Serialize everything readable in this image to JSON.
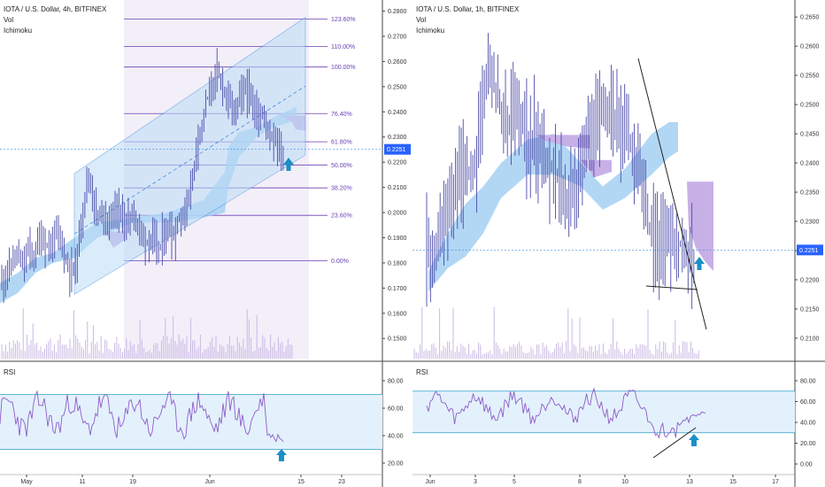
{
  "left": {
    "title": "IOTA / U.S. Dollar, 4h, BITFINEX",
    "vol_label": "Vol",
    "ichimoku_label": "Ichimoku",
    "rsi_label": "RSI",
    "price_ticks": [
      "0.2800",
      "0.2700",
      "0.2600",
      "0.2500",
      "0.2400",
      "0.2300",
      "0.2200",
      "0.2100",
      "0.2000",
      "0.1900",
      "0.1800",
      "0.1700",
      "0.1600",
      "0.1500"
    ],
    "current_price": "0.2251",
    "rsi_ticks": [
      "80.00",
      "60.00",
      "40.00",
      "20.00"
    ],
    "date_ticks": [
      "May",
      "11",
      "19",
      "Jun",
      "15",
      "23"
    ],
    "fib_levels": [
      "123.60%",
      "110.00%",
      "100.00%",
      "76.40%",
      "61.80%",
      "50.00%",
      "38.20%",
      "23.60%",
      "0.00%"
    ]
  },
  "right": {
    "title": "IOTA / U.S. Dollar, 1h, BITFINEX",
    "vol_label": "Vol",
    "ichimoku_label": "Ichimoku",
    "rsi_label": "RSI",
    "price_ticks": [
      "0.2650",
      "0.2600",
      "0.2550",
      "0.2500",
      "0.2450",
      "0.2400",
      "0.2350",
      "0.2300",
      "0.2250",
      "0.2200",
      "0.2150",
      "0.2100"
    ],
    "current_price": "0.2251",
    "rsi_ticks": [
      "80.00",
      "60.00",
      "40.00",
      "20.00",
      "0.00"
    ],
    "date_ticks": [
      "Jun",
      "3",
      "5",
      "8",
      "10",
      "13",
      "15",
      "17"
    ]
  },
  "chart_data": [
    {
      "type": "line",
      "title": "IOTA / U.S. Dollar, 4h, BITFINEX",
      "x_ticks": [
        "May",
        "11",
        "19",
        "Jun",
        "15",
        "23"
      ],
      "y_ticks": [
        0.28,
        0.27,
        0.26,
        0.25,
        0.24,
        0.23,
        0.22,
        0.21,
        0.2,
        0.19,
        0.18,
        0.17,
        0.16,
        0.15
      ],
      "ylim": [
        0.142,
        0.283
      ],
      "current_price": 0.2251,
      "series": [
        {
          "values": [
            0.172,
            0.176,
            0.18,
            0.184,
            0.178,
            0.186,
            0.182,
            0.19,
            0.188,
            0.185,
            0.192,
            0.19,
            0.18,
            0.176,
            0.182,
            0.2,
            0.215,
            0.205,
            0.198,
            0.2,
            0.196,
            0.202,
            0.2,
            0.195,
            0.2,
            0.196,
            0.192,
            0.188,
            0.19,
            0.185,
            0.19,
            0.194,
            0.19,
            0.198,
            0.2,
            0.21,
            0.225,
            0.235,
            0.245,
            0.25,
            0.256,
            0.25,
            0.245,
            0.24,
            0.245,
            0.25,
            0.245,
            0.24,
            0.238,
            0.236,
            0.23,
            0.228,
            0.222
          ]
        }
      ],
      "fib_levels": [
        "123.60%",
        "110.00%",
        "100.00%",
        "76.40%",
        "61.80%",
        "50.00%",
        "38.20%",
        "23.60%",
        "0.00%"
      ],
      "rsi_ticks": [
        80,
        60,
        40,
        20
      ]
    },
    {
      "type": "line",
      "title": "IOTA / U.S. Dollar, 1h, BITFINEX",
      "x_ticks": [
        "Jun",
        "3",
        "5",
        "8",
        "10",
        "13",
        "15",
        "17"
      ],
      "y_ticks": [
        0.265,
        0.26,
        0.255,
        0.25,
        0.245,
        0.24,
        0.235,
        0.23,
        0.225,
        0.22,
        0.215,
        0.21
      ],
      "ylim": [
        0.2065,
        0.267
      ],
      "current_price": 0.2251,
      "series": [
        {
          "values": [
            0.226,
            0.222,
            0.228,
            0.23,
            0.234,
            0.236,
            0.24,
            0.236,
            0.242,
            0.25,
            0.256,
            0.252,
            0.248,
            0.246,
            0.25,
            0.248,
            0.244,
            0.245,
            0.242,
            0.24,
            0.238,
            0.236,
            0.232,
            0.235,
            0.238,
            0.244,
            0.246,
            0.248,
            0.25,
            0.249,
            0.248,
            0.246,
            0.244,
            0.24,
            0.236,
            0.23,
            0.226,
            0.226,
            0.228,
            0.227,
            0.226,
            0.224,
            0.225
          ]
        }
      ],
      "rsi_ticks": [
        80,
        60,
        40,
        20,
        0
      ]
    }
  ]
}
